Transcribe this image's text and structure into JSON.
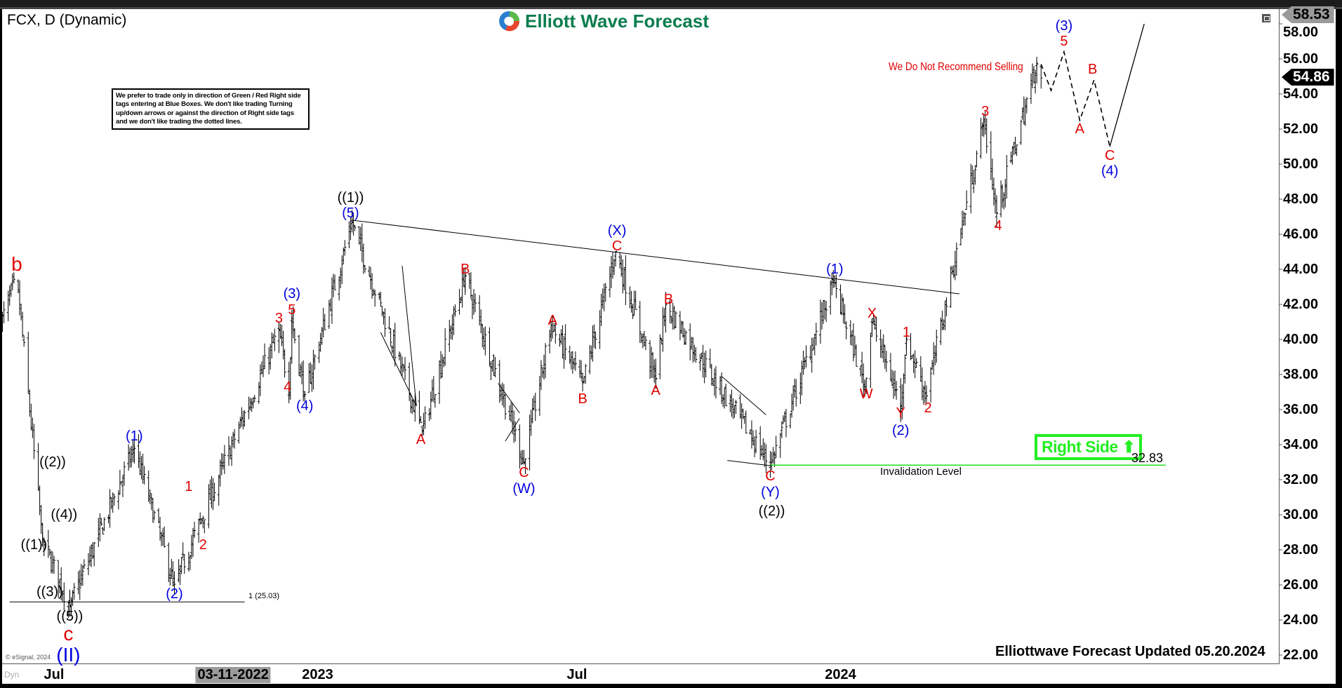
{
  "header": {
    "symbol_title": "FCX, D (Dynamic)",
    "logo_text": "Elliott Wave Forecast",
    "note": "We prefer to trade only in direction of Green / Red Right side tags entering at Blue Boxes. We don't like trading Turning up/down arrows or against the direction of Right side tags and we don't like trading the dotted lines.",
    "no_sell": "We Do Not Recommend Selling",
    "right_side": "Right Side",
    "right_side_icon": "arrow-up-icon",
    "updated": "Elliottwave Forecast Updated 05.20.2024",
    "copyright": "© eSignal, 2024",
    "dyn": "Dyn"
  },
  "colors": {
    "red": "#e00000",
    "blue": "#0000dd",
    "black": "#000000",
    "green": "#22ee22",
    "logo": "#0b7d4f"
  },
  "chart_data": {
    "type": "ohlc-bar",
    "symbol": "FCX",
    "interval": "D",
    "ylim": [
      22,
      58.6
    ],
    "y_ticks": [
      "22.00",
      "24.00",
      "26.00",
      "28.00",
      "30.00",
      "32.00",
      "34.00",
      "36.00",
      "38.00",
      "40.00",
      "42.00",
      "44.00",
      "46.00",
      "48.00",
      "50.00",
      "52.00",
      "54.00",
      "56.00",
      "58.00"
    ],
    "x_ticks": [
      {
        "label": "Jul",
        "date": "2022-07-01"
      },
      {
        "label": "03-11-2022",
        "date": "2022-11-03",
        "highlight": true
      },
      {
        "label": "2023",
        "date": "2023-01-01"
      },
      {
        "label": "Jul",
        "date": "2023-07-01"
      },
      {
        "label": "2024",
        "date": "2024-01-01"
      }
    ],
    "last_price": "54.86",
    "high_price": "58.53",
    "price_path_pivots": [
      [
        "2022-05-25",
        41
      ],
      [
        "2022-06-05",
        43.5
      ],
      [
        "2022-06-23",
        28.5
      ],
      [
        "2022-07-12",
        24.8
      ],
      [
        "2022-08-26",
        33.8
      ],
      [
        "2022-09-23",
        26
      ],
      [
        "2022-12-05",
        40.5
      ],
      [
        "2022-12-12",
        37
      ],
      [
        "2022-12-14",
        41
      ],
      [
        "2022-12-23",
        36.8
      ],
      [
        "2023-01-25",
        46.7
      ],
      [
        "2023-03-15",
        34.8
      ],
      [
        "2023-04-14",
        43.6
      ],
      [
        "2023-05-25",
        33
      ],
      [
        "2023-06-13",
        40.8
      ],
      [
        "2023-07-05",
        37.5
      ],
      [
        "2023-07-28",
        45
      ],
      [
        "2023-08-25",
        37.8
      ],
      [
        "2023-09-01",
        42
      ],
      [
        "2023-11-13",
        32.83
      ],
      [
        "2023-12-27",
        43.3
      ],
      [
        "2024-01-18",
        37.3
      ],
      [
        "2024-01-23",
        41
      ],
      [
        "2024-02-12",
        36.2
      ],
      [
        "2024-02-16",
        40
      ],
      [
        "2024-03-01",
        36.8
      ],
      [
        "2024-04-10",
        52.5
      ],
      [
        "2024-04-19",
        47.2
      ],
      [
        "2024-05-17",
        55.7
      ],
      [
        "2024-05-20",
        54.86
      ]
    ],
    "projection": {
      "dashed": [
        [
          "2024-05-20",
          55.7
        ],
        [
          "2024-05-27",
          54.2
        ],
        [
          "2024-06-05",
          56.4
        ],
        [
          "2024-06-16",
          52.5
        ],
        [
          "2024-06-26",
          54.8
        ],
        [
          "2024-07-07",
          51
        ]
      ],
      "solid": [
        [
          "2024-07-07",
          51
        ],
        [
          "2024-07-31",
          58
        ]
      ]
    },
    "lines": {
      "trendline": [
        [
          "2023-01-25",
          46.8
        ],
        [
          "2024-03-24",
          42.6
        ]
      ],
      "invalidation": {
        "label": "Invalidation Level",
        "value": "32.83",
        "from": "2023-11-13",
        "to": "2024-08-15",
        "price": 32.83
      },
      "fib": {
        "label": "1 (25.03)",
        "from": "2022-05-31",
        "to": "2022-11-11",
        "price": 25.03
      },
      "wedges": [
        [
          [
            "2023-02-14",
            40.4
          ],
          [
            "2023-03-11",
            36.2
          ]
        ],
        [
          [
            "2023-03-01",
            44.2
          ],
          [
            "2023-03-11",
            36.2
          ]
        ],
        [
          [
            "2023-05-07",
            37.5
          ],
          [
            "2023-05-22",
            35.8
          ]
        ],
        [
          [
            "2023-05-12",
            34.2
          ],
          [
            "2023-05-22",
            35.5
          ]
        ],
        [
          [
            "2023-10-10",
            37.9
          ],
          [
            "2023-11-10",
            35.7
          ]
        ],
        [
          [
            "2023-10-14",
            33.1
          ],
          [
            "2023-11-13",
            32.8
          ]
        ]
      ]
    },
    "annotations": [
      {
        "text": "b",
        "color": "red",
        "date": "2022-06-05",
        "price": 44.3,
        "big": true
      },
      {
        "text": "((2))",
        "color": "black",
        "date": "2022-06-30",
        "price": 33.0
      },
      {
        "text": "((4))",
        "color": "black",
        "date": "2022-07-08",
        "price": 30.0
      },
      {
        "text": "((1))",
        "color": "black",
        "date": "2022-06-17",
        "price": 28.3
      },
      {
        "text": "((3))",
        "color": "black",
        "date": "2022-06-28",
        "price": 25.6
      },
      {
        "text": "((5))",
        "color": "black",
        "date": "2022-07-12",
        "price": 24.2
      },
      {
        "text": "c",
        "color": "red",
        "date": "2022-07-11",
        "price": 23.2,
        "big": true
      },
      {
        "text": "(II)",
        "color": "blue",
        "date": "2022-07-11",
        "price": 22.3,
        "big": true
      },
      {
        "text": "(1)",
        "color": "blue",
        "date": "2022-08-26",
        "price": 34.5
      },
      {
        "text": "(2)",
        "color": "blue",
        "date": "2022-09-23",
        "price": 25.5
      },
      {
        "text": "1",
        "color": "red",
        "date": "2022-10-03",
        "price": 31.6
      },
      {
        "text": "2",
        "color": "red",
        "date": "2022-10-13",
        "price": 28.3
      },
      {
        "text": "3",
        "color": "red",
        "date": "2022-12-05",
        "price": 41.2
      },
      {
        "text": "5",
        "color": "red",
        "date": "2022-12-14",
        "price": 41.7
      },
      {
        "text": "(3)",
        "color": "blue",
        "date": "2022-12-14",
        "price": 42.6
      },
      {
        "text": "4",
        "color": "red",
        "date": "2022-12-11",
        "price": 37.3
      },
      {
        "text": "(4)",
        "color": "blue",
        "date": "2022-12-23",
        "price": 36.2
      },
      {
        "text": "((1))",
        "color": "black",
        "date": "2023-01-24",
        "price": 48.1
      },
      {
        "text": "(5)",
        "color": "blue",
        "date": "2023-01-24",
        "price": 47.3
      },
      {
        "text": "A",
        "color": "red",
        "date": "2023-03-14",
        "price": 34.3
      },
      {
        "text": "B",
        "color": "red",
        "date": "2023-04-14",
        "price": 44.0
      },
      {
        "text": "C",
        "color": "red",
        "date": "2023-05-25",
        "price": 32.4
      },
      {
        "text": "(W)",
        "color": "blue",
        "date": "2023-05-25",
        "price": 31.5
      },
      {
        "text": "A",
        "color": "red",
        "date": "2023-06-14",
        "price": 41.1
      },
      {
        "text": "B",
        "color": "red",
        "date": "2023-07-05",
        "price": 36.6
      },
      {
        "text": "(X)",
        "color": "blue",
        "date": "2023-07-29",
        "price": 46.2
      },
      {
        "text": "C",
        "color": "red",
        "date": "2023-07-29",
        "price": 45.4
      },
      {
        "text": "A",
        "color": "red",
        "date": "2023-08-25",
        "price": 37.1
      },
      {
        "text": "B",
        "color": "red",
        "date": "2023-09-03",
        "price": 42.3
      },
      {
        "text": "C",
        "color": "red",
        "date": "2023-11-13",
        "price": 32.2
      },
      {
        "text": "(Y)",
        "color": "blue",
        "date": "2023-11-13",
        "price": 31.3
      },
      {
        "text": "((2))",
        "color": "black",
        "date": "2023-11-14",
        "price": 30.2
      },
      {
        "text": "(1)",
        "color": "blue",
        "date": "2023-12-28",
        "price": 44.0
      },
      {
        "text": "X",
        "color": "red",
        "date": "2024-01-23",
        "price": 41.5
      },
      {
        "text": "W",
        "color": "red",
        "date": "2024-01-19",
        "price": 36.9
      },
      {
        "text": "Y",
        "color": "red",
        "date": "2024-02-12",
        "price": 35.8
      },
      {
        "text": "(2)",
        "color": "blue",
        "date": "2024-02-12",
        "price": 34.8
      },
      {
        "text": "1",
        "color": "red",
        "date": "2024-02-16",
        "price": 40.4
      },
      {
        "text": "2",
        "color": "red",
        "date": "2024-03-02",
        "price": 36.1
      },
      {
        "text": "3",
        "color": "red",
        "date": "2024-04-11",
        "price": 53.0
      },
      {
        "text": "4",
        "color": "red",
        "date": "2024-04-20",
        "price": 46.5
      },
      {
        "text": "(3)",
        "color": "blue",
        "date": "2024-06-05",
        "price": 57.9
      },
      {
        "text": "5",
        "color": "red",
        "date": "2024-06-05",
        "price": 57.0
      },
      {
        "text": "A",
        "color": "red",
        "date": "2024-06-16",
        "price": 52.0
      },
      {
        "text": "B",
        "color": "red",
        "date": "2024-06-25",
        "price": 55.4
      },
      {
        "text": "C",
        "color": "red",
        "date": "2024-07-07",
        "price": 50.5
      },
      {
        "text": "(4)",
        "color": "blue",
        "date": "2024-07-07",
        "price": 49.6
      }
    ]
  }
}
